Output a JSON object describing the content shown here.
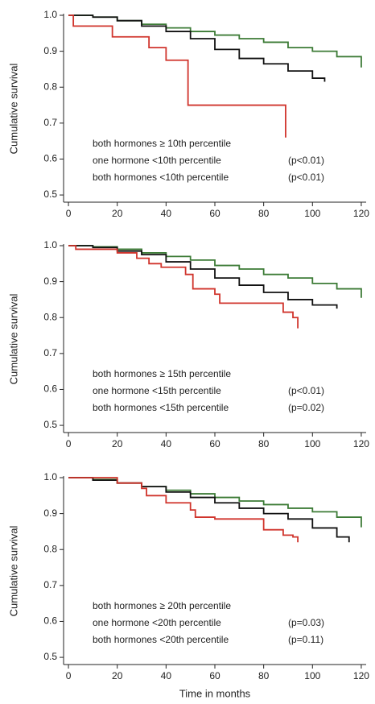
{
  "chart_data": [
    {
      "type": "line",
      "step": true,
      "ylabel": "Cumulative survival",
      "xlim": [
        -2,
        122
      ],
      "ylim": [
        0.48,
        1.0
      ],
      "xticks": [
        0,
        20,
        40,
        60,
        80,
        100,
        120
      ],
      "yticks": [
        0.5,
        0.6,
        0.7,
        0.8,
        0.9,
        {
          "value": 1,
          "label": "1.0"
        }
      ],
      "series": [
        {
          "name": "both hormones ≥ 10th percentile",
          "color": "#3c7b36",
          "x": [
            0,
            10,
            20,
            30,
            40,
            50,
            60,
            70,
            80,
            90,
            100,
            110,
            120
          ],
          "values": [
            1.0,
            0.995,
            0.985,
            0.975,
            0.965,
            0.955,
            0.945,
            0.935,
            0.925,
            0.91,
            0.9,
            0.885,
            0.855
          ]
        },
        {
          "name": "one hormone <10th percentile",
          "p_value": "(p<0.01)",
          "color": "#111111",
          "x": [
            0,
            10,
            20,
            30,
            40,
            50,
            60,
            70,
            80,
            90,
            100,
            105
          ],
          "values": [
            1.0,
            0.995,
            0.985,
            0.97,
            0.955,
            0.935,
            0.905,
            0.88,
            0.865,
            0.845,
            0.825,
            0.815
          ]
        },
        {
          "name": "both hormones <10th percentile",
          "p_value": "(p<0.01)",
          "color": "#d0342c",
          "x": [
            0,
            2,
            18,
            33,
            40,
            49,
            89,
            89
          ],
          "values": [
            1.0,
            0.97,
            0.94,
            0.91,
            0.875,
            0.75,
            0.75,
            0.66
          ]
        }
      ]
    },
    {
      "type": "line",
      "step": true,
      "ylabel": "Cumulative survival",
      "xlim": [
        -2,
        122
      ],
      "ylim": [
        0.48,
        1.0
      ],
      "xticks": [
        0,
        20,
        40,
        60,
        80,
        100,
        120
      ],
      "yticks": [
        0.5,
        0.6,
        0.7,
        0.8,
        0.9,
        {
          "value": 1,
          "label": "1.0"
        }
      ],
      "series": [
        {
          "name": "both hormones ≥ 15th percentile",
          "color": "#3c7b36",
          "x": [
            0,
            10,
            20,
            30,
            40,
            50,
            60,
            70,
            80,
            90,
            100,
            110,
            120
          ],
          "values": [
            1.0,
            0.997,
            0.99,
            0.98,
            0.97,
            0.96,
            0.945,
            0.935,
            0.92,
            0.91,
            0.895,
            0.88,
            0.855
          ]
        },
        {
          "name": "one hormone <15th percentile",
          "p_value": "(p<0.01)",
          "color": "#111111",
          "x": [
            0,
            10,
            20,
            30,
            40,
            50,
            60,
            70,
            80,
            90,
            100,
            110
          ],
          "values": [
            1.0,
            0.995,
            0.985,
            0.975,
            0.955,
            0.935,
            0.91,
            0.89,
            0.87,
            0.85,
            0.835,
            0.825
          ]
        },
        {
          "name": "both hormones <15th percentile",
          "p_value": "(p=0.02)",
          "color": "#d0342c",
          "x": [
            0,
            3,
            20,
            28,
            33,
            38,
            48,
            51,
            60,
            62,
            87,
            88,
            92,
            94
          ],
          "values": [
            1.0,
            0.99,
            0.98,
            0.965,
            0.95,
            0.94,
            0.92,
            0.88,
            0.865,
            0.84,
            0.84,
            0.815,
            0.8,
            0.77
          ]
        }
      ]
    },
    {
      "type": "line",
      "step": true,
      "ylabel": "Cumulative survival",
      "xlabel": "Time in months",
      "xlim": [
        -2,
        122
      ],
      "ylim": [
        0.48,
        1.0
      ],
      "xticks": [
        0,
        20,
        40,
        60,
        80,
        100,
        120
      ],
      "yticks": [
        0.5,
        0.6,
        0.7,
        0.8,
        0.9,
        {
          "value": 1,
          "label": "1.0"
        }
      ],
      "series": [
        {
          "name": "both hormones ≥ 20th percentile",
          "color": "#3c7b36",
          "x": [
            0,
            10,
            20,
            30,
            40,
            50,
            60,
            70,
            80,
            90,
            100,
            110,
            120
          ],
          "values": [
            1.0,
            0.995,
            0.985,
            0.975,
            0.965,
            0.955,
            0.945,
            0.935,
            0.925,
            0.915,
            0.905,
            0.89,
            0.862
          ]
        },
        {
          "name": "one hormone <20th percentile",
          "p_value": "(p=0.03)",
          "color": "#111111",
          "x": [
            0,
            10,
            20,
            30,
            40,
            50,
            60,
            70,
            80,
            90,
            100,
            110,
            115
          ],
          "values": [
            1.0,
            0.993,
            0.985,
            0.975,
            0.96,
            0.945,
            0.93,
            0.915,
            0.9,
            0.885,
            0.86,
            0.835,
            0.82
          ]
        },
        {
          "name": "both hormones <20th percentile",
          "p_value": "(p=0.11)",
          "color": "#d0342c",
          "x": [
            0,
            20,
            30,
            32,
            40,
            50,
            52,
            60,
            80,
            88,
            92,
            94
          ],
          "values": [
            1.0,
            0.985,
            0.97,
            0.95,
            0.93,
            0.91,
            0.89,
            0.885,
            0.855,
            0.84,
            0.835,
            0.82
          ]
        }
      ]
    }
  ]
}
